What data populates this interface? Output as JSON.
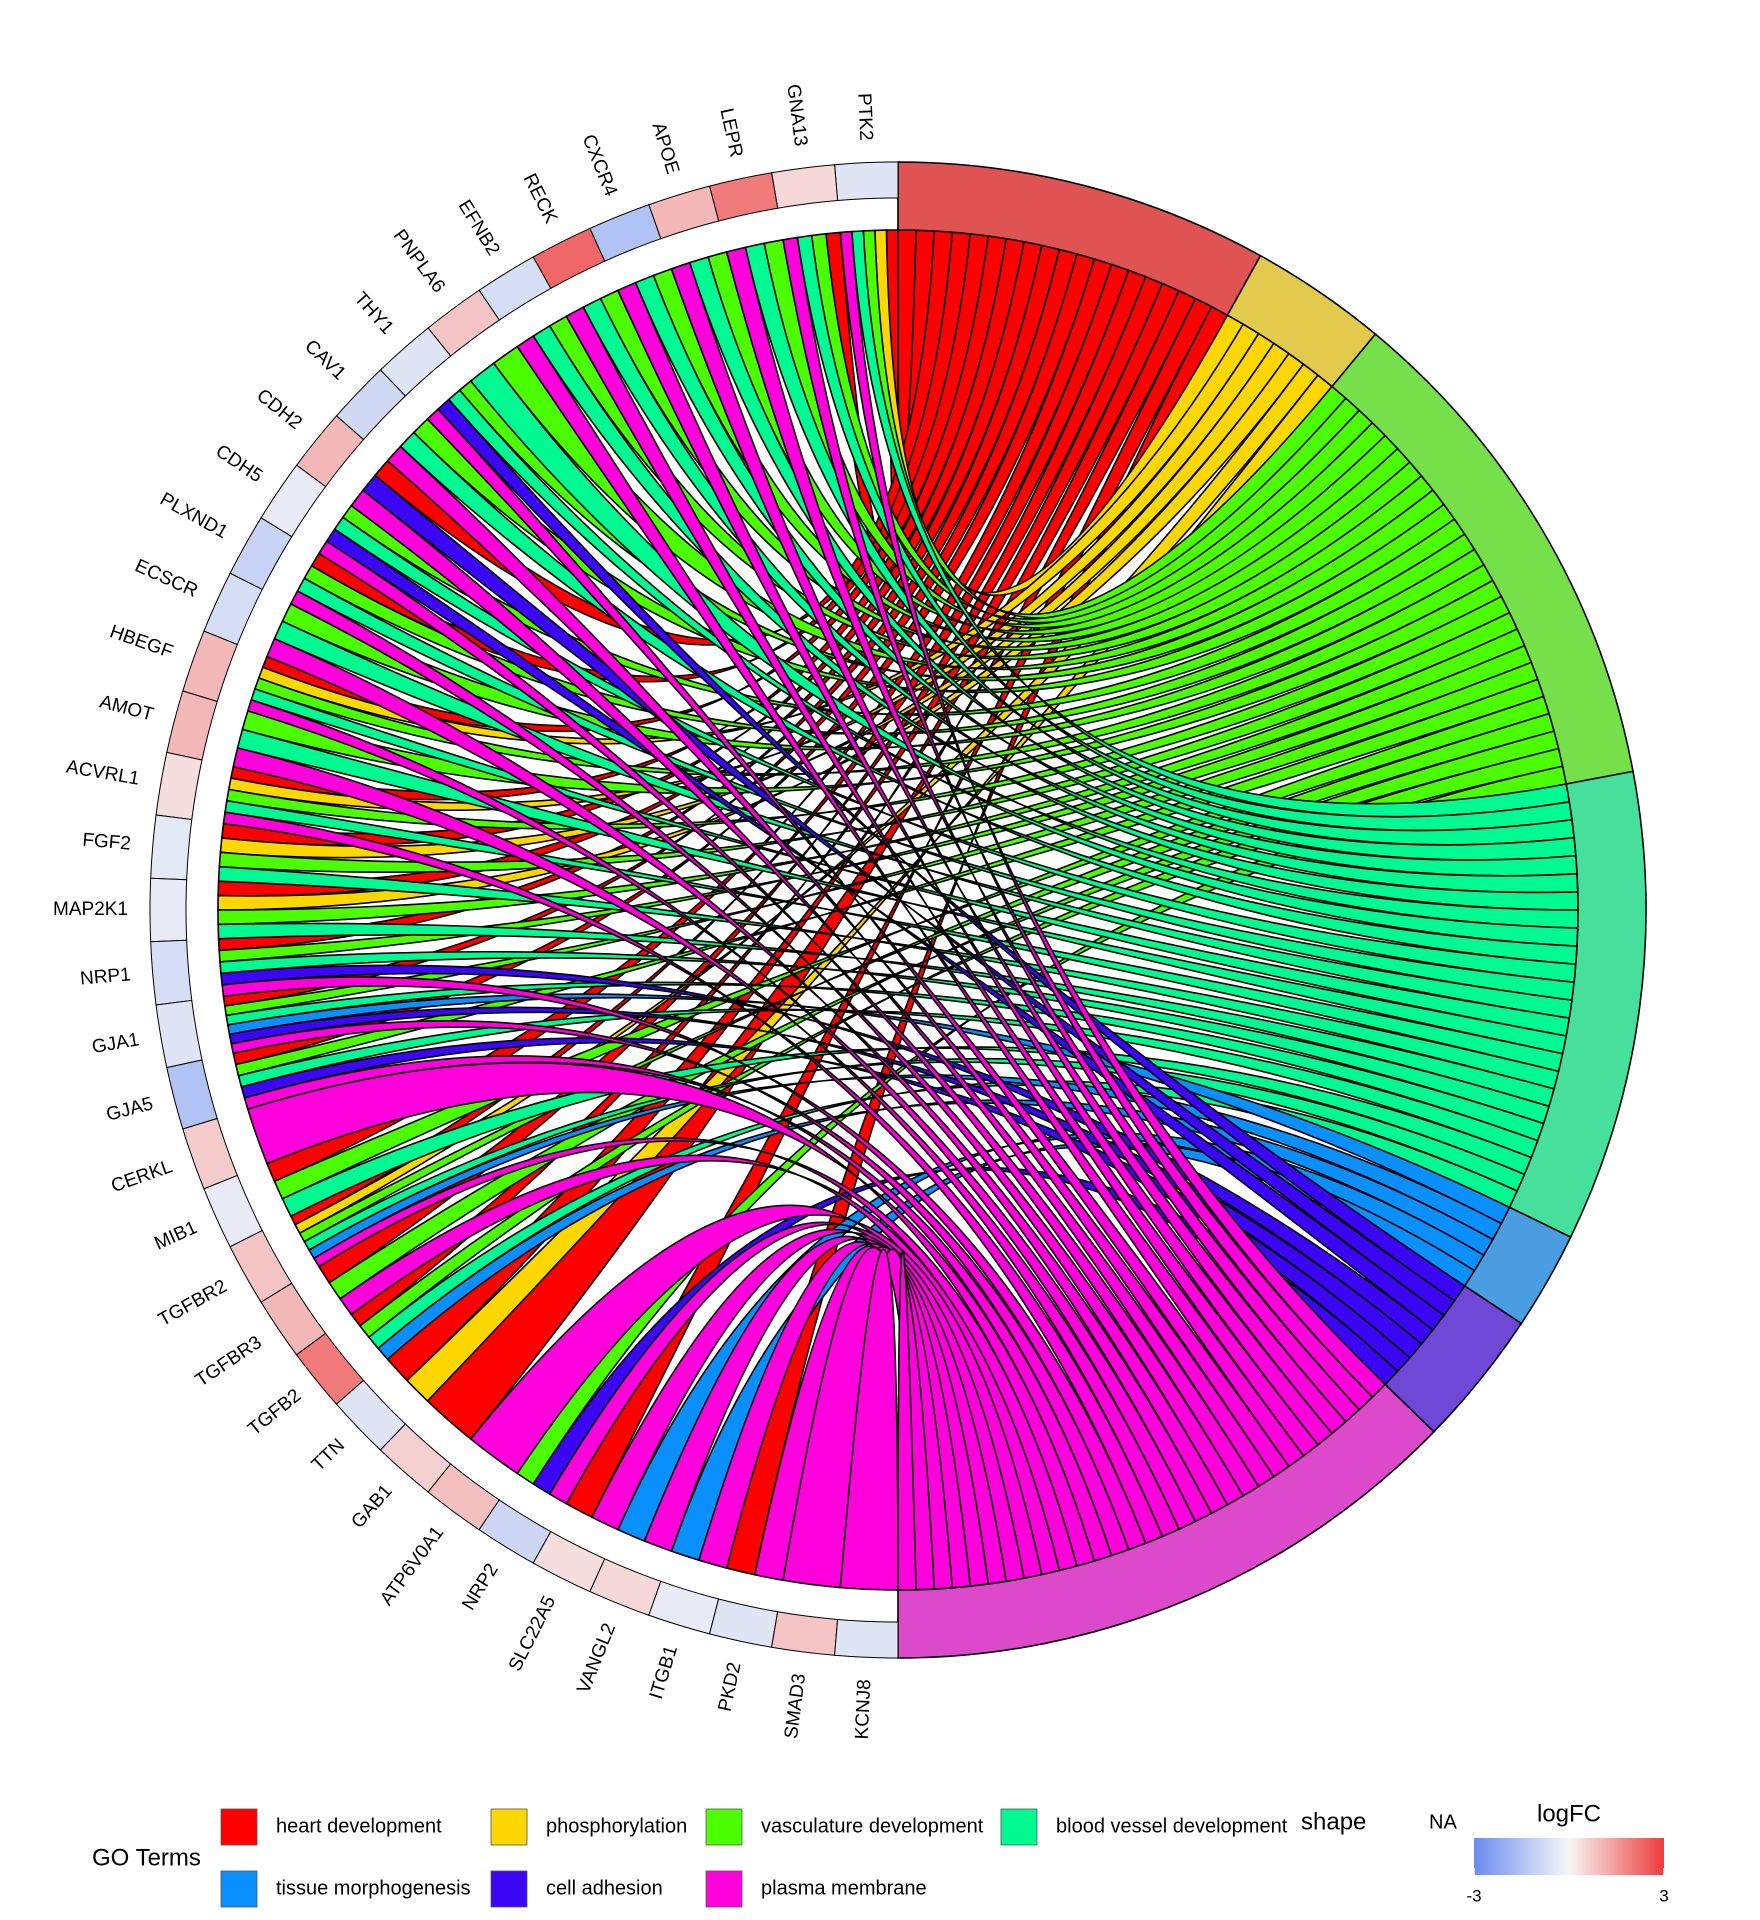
{
  "chart_data": {
    "type": "chord",
    "genes": [
      "PTK2",
      "GNA13",
      "LEPR",
      "APOE",
      "CXCR4",
      "RECK",
      "EFNB2",
      "PNPLA6",
      "THY1",
      "CAV1",
      "CDH2",
      "CDH5",
      "PLXND1",
      "ECSCR",
      "HBEGF",
      "AMOT",
      "ACVRL1",
      "FGF2",
      "MAP2K1",
      "NRP1",
      "GJA1",
      "GJA5",
      "CERKL",
      "MIB1",
      "TGFBR2",
      "TGFBR3",
      "TGFB2",
      "TTN",
      "GAB1",
      "ATP6V0A1",
      "NRP2",
      "SLC22A5",
      "VANGL2",
      "ITGB1",
      "PKD2",
      "SMAD3",
      "KCNJ8"
    ],
    "logFC": [
      -0.5,
      0.5,
      2,
      1,
      -1.5,
      2.3,
      -0.7,
      0.8,
      -0.5,
      -0.8,
      1,
      -0.3,
      -1,
      -0.7,
      1,
      1,
      0.4,
      -0.4,
      -0.3,
      -0.7,
      -0.5,
      -1.5,
      0.7,
      -0.3,
      0.8,
      1,
      2,
      -0.5,
      0.6,
      0.9,
      -0.9,
      0.4,
      0.5,
      -0.3,
      -0.5,
      0.8,
      -0.5
    ],
    "terms": [
      {
        "name": "heart development",
        "color": "#ff0000",
        "band_color": "#e05353"
      },
      {
        "name": "phosphorylation",
        "color": "#ffd700",
        "band_color": "#e2cb4c"
      },
      {
        "name": "vasculature development",
        "color": "#4cff00",
        "band_color": "#75e04a"
      },
      {
        "name": "blood vessel development",
        "color": "#00fa92",
        "band_color": "#46e09c"
      },
      {
        "name": "tissue morphogenesis",
        "color": "#0a8fff",
        "band_color": "#4a9de0"
      },
      {
        "name": "cell adhesion",
        "color": "#3a06f5",
        "band_color": "#7048d8"
      },
      {
        "name": "plasma membrane",
        "color": "#ff00dc",
        "band_color": "#dc4acb"
      }
    ],
    "membership": [
      [
        1,
        1,
        1,
        1,
        0,
        0,
        1
      ],
      [
        1,
        0,
        1,
        1,
        0,
        0,
        1
      ],
      [
        0,
        0,
        1,
        1,
        0,
        0,
        1
      ],
      [
        0,
        0,
        1,
        1,
        0,
        0,
        1
      ],
      [
        0,
        0,
        1,
        1,
        0,
        0,
        1
      ],
      [
        0,
        0,
        1,
        1,
        0,
        0,
        1
      ],
      [
        0,
        0,
        1,
        1,
        0,
        0,
        1
      ],
      [
        0,
        0,
        1,
        1,
        0,
        0,
        0
      ],
      [
        0,
        0,
        1,
        1,
        0,
        1,
        1
      ],
      [
        0,
        0,
        1,
        1,
        0,
        0,
        1
      ],
      [
        1,
        0,
        0,
        0,
        0,
        1,
        1
      ],
      [
        0,
        0,
        1,
        1,
        0,
        1,
        1
      ],
      [
        1,
        0,
        1,
        1,
        0,
        0,
        1
      ],
      [
        0,
        0,
        1,
        1,
        0,
        0,
        1
      ],
      [
        1,
        1,
        1,
        1,
        0,
        0,
        1
      ],
      [
        0,
        0,
        1,
        1,
        0,
        0,
        1
      ],
      [
        1,
        1,
        1,
        1,
        0,
        0,
        1
      ],
      [
        1,
        1,
        1,
        1,
        0,
        0,
        0
      ],
      [
        1,
        1,
        1,
        1,
        0,
        0,
        0
      ],
      [
        1,
        0,
        1,
        1,
        0,
        1,
        1
      ],
      [
        1,
        0,
        1,
        1,
        1,
        1,
        1
      ],
      [
        1,
        0,
        1,
        1,
        0,
        1,
        1
      ],
      [
        0,
        0,
        0,
        0,
        0,
        0,
        1
      ],
      [
        1,
        0,
        1,
        1,
        0,
        0,
        0
      ],
      [
        1,
        1,
        1,
        1,
        1,
        0,
        1
      ],
      [
        1,
        0,
        1,
        0,
        0,
        0,
        1
      ],
      [
        1,
        0,
        1,
        1,
        1,
        0,
        0
      ],
      [
        1,
        1,
        0,
        0,
        0,
        0,
        0
      ],
      [
        1,
        0,
        0,
        0,
        0,
        0,
        0
      ],
      [
        0,
        0,
        0,
        0,
        0,
        0,
        1
      ],
      [
        0,
        0,
        1,
        0,
        0,
        1,
        1
      ],
      [
        1,
        0,
        0,
        0,
        0,
        0,
        1
      ],
      [
        0,
        0,
        0,
        0,
        1,
        0,
        1
      ],
      [
        0,
        0,
        0,
        0,
        1,
        0,
        1
      ],
      [
        1,
        0,
        0,
        0,
        0,
        0,
        1
      ],
      [
        0,
        0,
        0,
        0,
        0,
        0,
        1
      ],
      [
        0,
        0,
        0,
        0,
        0,
        0,
        1
      ]
    ],
    "legend_title": "GO Terms",
    "shape_title": "shape",
    "shape_label": "NA",
    "colorbar": {
      "title": "logFC",
      "lim": [
        -3,
        3
      ],
      "ticks": [
        -3,
        3
      ],
      "colors": [
        "#6a8cf0",
        "#f7f7f7",
        "#ee3b3b"
      ]
    }
  }
}
